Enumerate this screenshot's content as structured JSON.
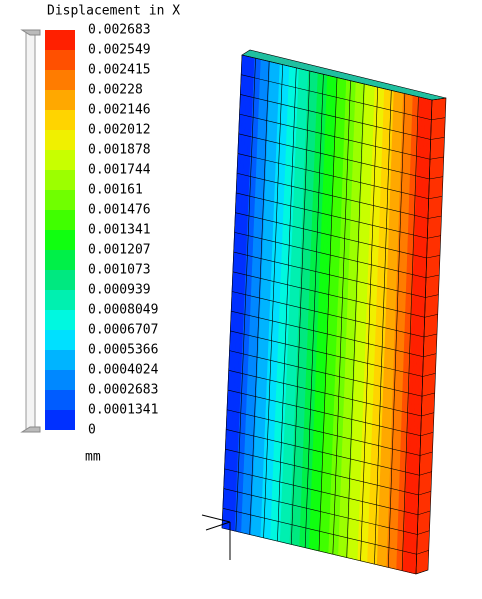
{
  "legend": {
    "title": "Displacement in X",
    "labels": [
      0.002683,
      0.002549,
      0.002415,
      0.00228,
      0.002146,
      0.002012,
      0.001878,
      0.001744,
      0.00161,
      0.001476,
      0.001341,
      0.001207,
      0.001073,
      0.000939,
      0.0008049,
      0.0006707,
      0.0005366,
      0.0004024,
      0.0002683,
      0.0001341,
      0
    ],
    "unit": "mm"
  }
}
